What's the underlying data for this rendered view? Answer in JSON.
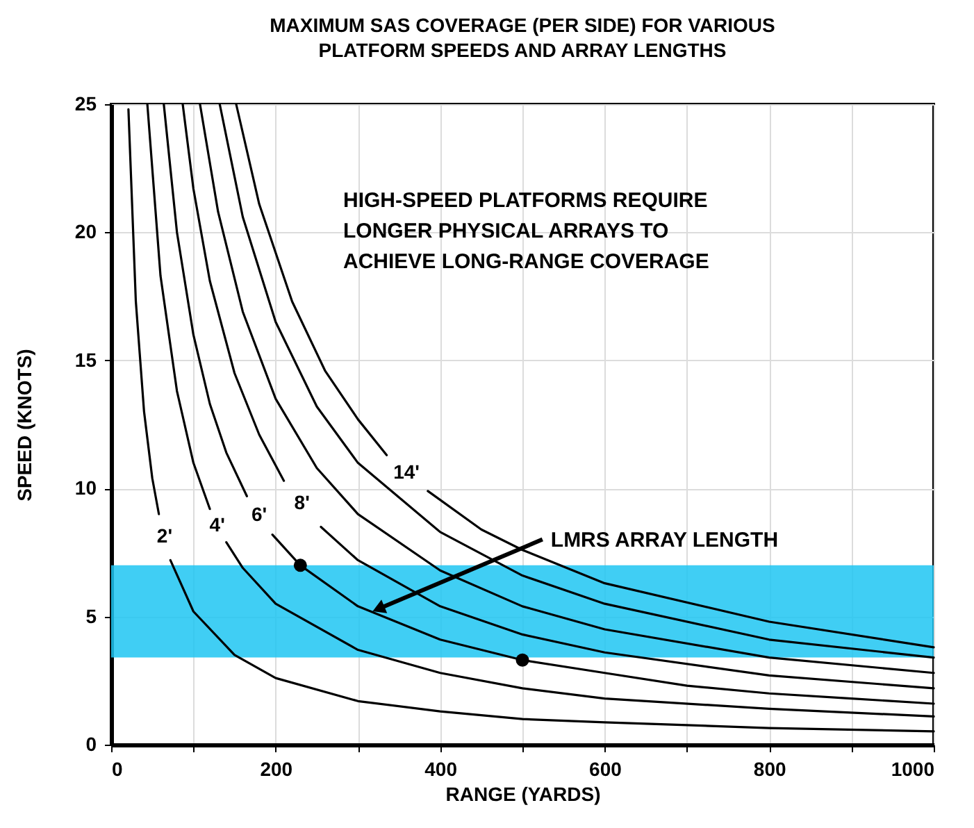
{
  "chart_data": {
    "type": "line",
    "title": "MAXIMUM SAS COVERAGE (PER SIDE) FOR VARIOUS\nPLATFORM SPEEDS AND ARRAY LENGTHS",
    "xlabel": "RANGE (YARDS)",
    "ylabel": "SPEED (KNOTS)",
    "annotations": [
      "HIGH-SPEED PLATFORMS REQUIRE\nLONGER PHYSICAL ARRAYS TO\nACHIEVE LONG-RANGE COVERAGE",
      {
        "text": "LMRS ARRAY LENGTH",
        "x": 325,
        "y": 5.3
      }
    ],
    "xlim": [
      0,
      1000
    ],
    "ylim": [
      0,
      25
    ],
    "xticks": [
      0,
      {
        "value": 100,
        "label": null
      },
      200,
      {
        "value": 300,
        "label": null
      },
      400,
      {
        "value": 500,
        "label": null
      },
      600,
      {
        "value": 700,
        "label": null
      },
      800,
      {
        "value": 900,
        "label": null
      },
      1000
    ],
    "yticks": [
      0,
      5,
      10,
      15,
      20,
      25
    ],
    "grid": true,
    "bands": [
      {
        "axis": "y",
        "from": 3.4,
        "to": 7.0,
        "color": "#1ec6f2"
      }
    ],
    "series": [
      {
        "name": "2'",
        "color": "#000000",
        "x": [
          21,
          30,
          40,
          50,
          58,
          65,
          72,
          100,
          150,
          200,
          300,
          400,
          500,
          600,
          800,
          1000
        ],
        "values": [
          24.8,
          17.3,
          13,
          10.4,
          9.0,
          null,
          7.2,
          5.2,
          3.5,
          2.6,
          1.7,
          1.3,
          1.0,
          0.87,
          0.65,
          0.52
        ]
      },
      {
        "name": "4'",
        "color": "#000000",
        "x": [
          44,
          60,
          80,
          100,
          120,
          129,
          140,
          160,
          200,
          300,
          400,
          500,
          600,
          800,
          1000
        ],
        "values": [
          25,
          18.3,
          13.8,
          11,
          9.2,
          null,
          7.9,
          6.9,
          5.5,
          3.7,
          2.8,
          2.2,
          1.8,
          1.4,
          1.1
        ]
      },
      {
        "name": "6'",
        "color": "#000000",
        "x": [
          64,
          80,
          100,
          120,
          140,
          165,
          180,
          196,
          230,
          300,
          400,
          500,
          600,
          700,
          800,
          900,
          1000
        ],
        "values": [
          25,
          20,
          16,
          13.3,
          11.4,
          9.7,
          null,
          8.2,
          7.0,
          5.4,
          4.1,
          3.3,
          2.8,
          2.3,
          2.0,
          1.8,
          1.6
        ]
      },
      {
        "name": "8'",
        "color": "#000000",
        "x": [
          87,
          100,
          120,
          150,
          180,
          210,
          232,
          255,
          300,
          400,
          500,
          600,
          800,
          1000
        ],
        "values": [
          25,
          21.7,
          18.1,
          14.5,
          12.1,
          10.3,
          null,
          8.5,
          7.2,
          5.4,
          4.3,
          3.6,
          2.7,
          2.2
        ]
      },
      {
        "color": "#000000",
        "x": [
          108,
          130,
          160,
          200,
          250,
          300,
          400,
          500,
          600,
          800,
          1000
        ],
        "values": [
          25,
          20.8,
          16.9,
          13.5,
          10.8,
          9.0,
          6.8,
          5.4,
          4.5,
          3.4,
          2.8
        ]
      },
      {
        "color": "#000000",
        "x": [
          132,
          160,
          200,
          250,
          300,
          400,
          500,
          600,
          800,
          1000
        ],
        "values": [
          25,
          20.6,
          16.5,
          13.2,
          11.0,
          8.3,
          6.6,
          5.5,
          4.1,
          3.4
        ]
      },
      {
        "name": "14'",
        "color": "#000000",
        "x": [
          152,
          180,
          220,
          260,
          300,
          335,
          359,
          385,
          450,
          500,
          600,
          800,
          1000
        ],
        "values": [
          25,
          21.1,
          17.3,
          14.6,
          12.7,
          11.3,
          null,
          9.9,
          8.4,
          7.6,
          6.3,
          4.8,
          3.8
        ]
      },
      {
        "type": "scatter",
        "color": "#000000",
        "x": [
          230,
          500
        ],
        "values": [
          7.0,
          3.3
        ]
      }
    ]
  }
}
